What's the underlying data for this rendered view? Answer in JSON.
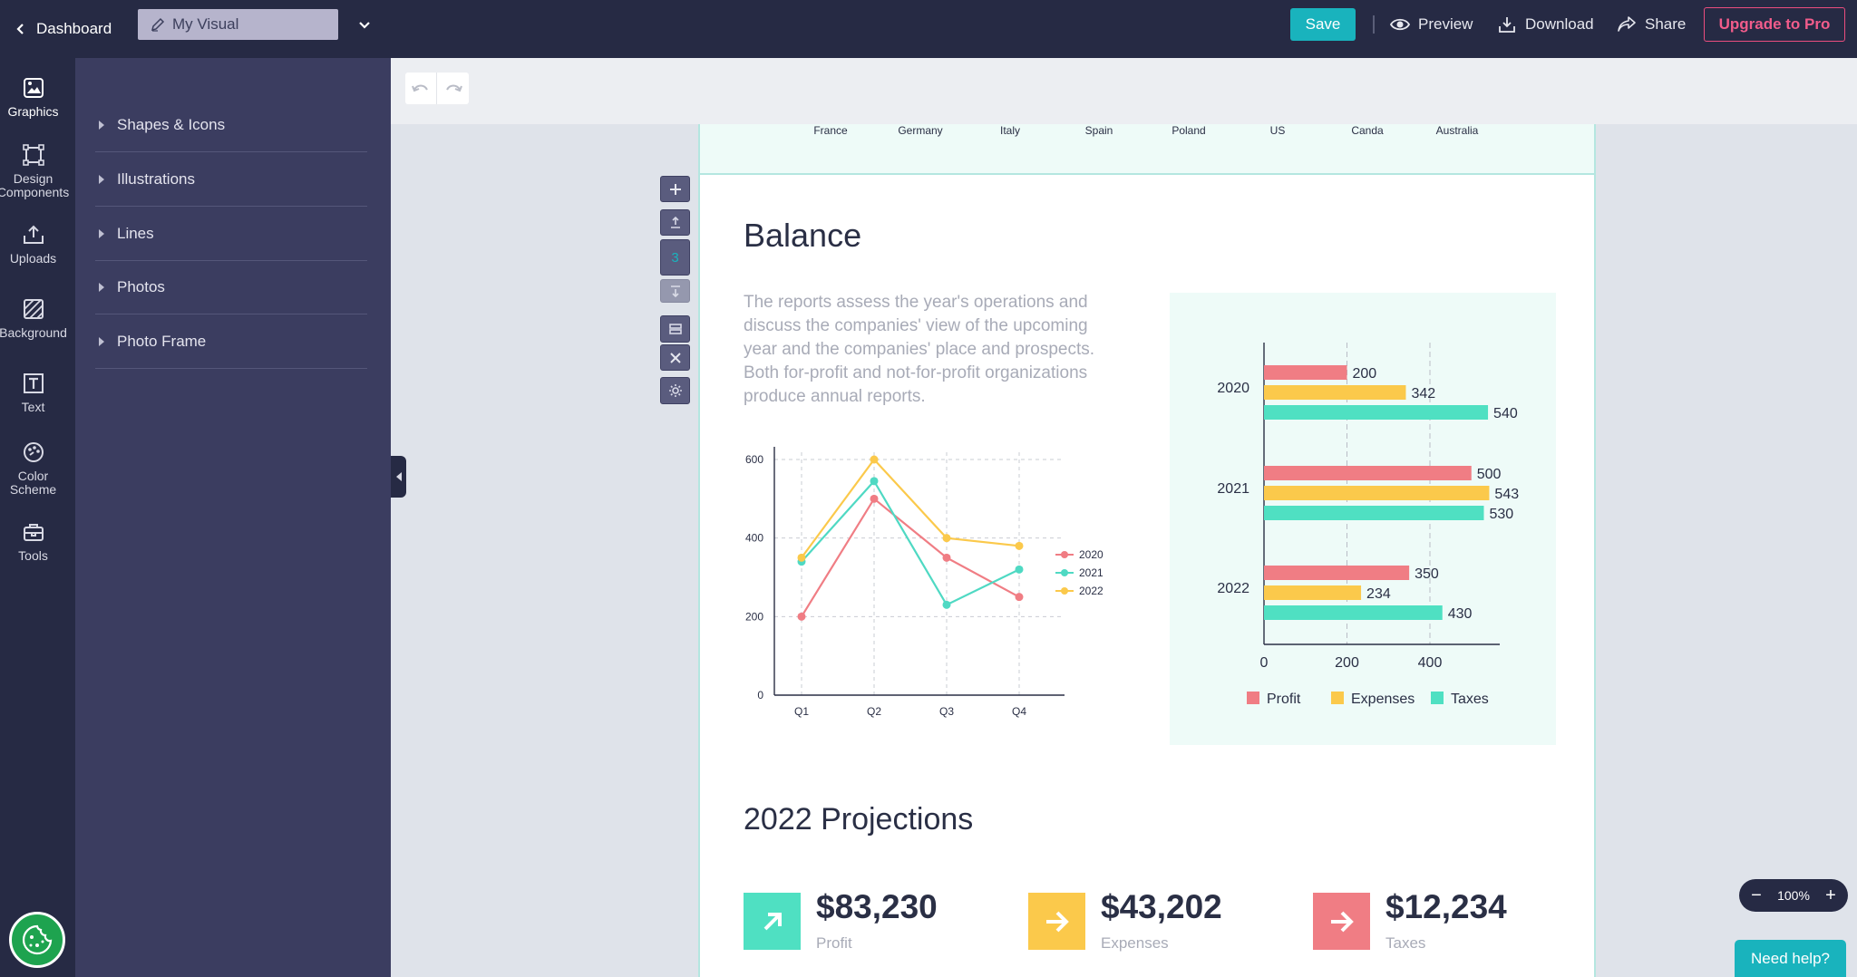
{
  "topbar": {
    "back_label": "Dashboard",
    "doc_name": "My Visual",
    "save_label": "Save",
    "preview_label": "Preview",
    "download_label": "Download",
    "share_label": "Share",
    "upgrade_label": "Upgrade to Pro"
  },
  "rail": {
    "items": [
      {
        "label": "Graphics",
        "icon": "image-icon"
      },
      {
        "label": "Design Components",
        "icon": "components-icon"
      },
      {
        "label": "Uploads",
        "icon": "upload-icon"
      },
      {
        "label": "Background",
        "icon": "background-icon"
      },
      {
        "label": "Text",
        "icon": "text-icon"
      },
      {
        "label": "Color Scheme",
        "icon": "palette-icon"
      },
      {
        "label": "Tools",
        "icon": "toolbox-icon"
      }
    ]
  },
  "panel": {
    "items": [
      "Shapes & Icons",
      "Illustrations",
      "Lines",
      "Photos",
      "Photo Frame"
    ]
  },
  "section_tools": {
    "section_number": "3"
  },
  "page": {
    "countries": [
      "France",
      "Germany",
      "Italy",
      "Spain",
      "Poland",
      "US",
      "Canda",
      "Australia"
    ],
    "balance_title": "Balance",
    "balance_desc": "The reports assess the year's operations and discuss the companies' view of the upcoming year and the companies' place and prospects. Both for-profit and not-for-profit organizations produce annual reports.",
    "projections_title": "2022 Projections",
    "kpis": [
      {
        "value": "$83,230",
        "label": "Profit",
        "color": "#4fe0c2",
        "icon": "arrow-up-right-icon"
      },
      {
        "value": "$43,202",
        "label": "Expenses",
        "color": "#fbc94b",
        "icon": "arrow-right-icon"
      },
      {
        "value": "$12,234",
        "label": "Taxes",
        "color": "#f07d84",
        "icon": "arrow-right-icon"
      }
    ]
  },
  "zoom": {
    "value": "100%"
  },
  "help_label": "Need help?",
  "chart_data": [
    {
      "type": "line",
      "categories": [
        "Q1",
        "Q2",
        "Q3",
        "Q4"
      ],
      "ylim": [
        0,
        600
      ],
      "yticks": [
        0,
        200,
        400,
        600
      ],
      "grid": true,
      "legend": "right",
      "series": [
        {
          "name": "2020",
          "color": "#f07d84",
          "values": [
            200,
            500,
            350,
            250
          ]
        },
        {
          "name": "2021",
          "color": "#4fd9c3",
          "values": [
            340,
            545,
            230,
            320
          ]
        },
        {
          "name": "2022",
          "color": "#fbc94b",
          "values": [
            350,
            600,
            400,
            380
          ]
        }
      ]
    },
    {
      "type": "bar",
      "orientation": "horizontal",
      "categories": [
        "2020",
        "2021",
        "2022"
      ],
      "xticks": [
        0,
        200,
        400
      ],
      "xlim": [
        0,
        570
      ],
      "legend": "bottom",
      "series": [
        {
          "name": "Profit",
          "color": "#f07d84",
          "values": [
            200,
            500,
            350
          ]
        },
        {
          "name": "Expenses",
          "color": "#fbc94b",
          "values": [
            342,
            543,
            234
          ]
        },
        {
          "name": "Taxes",
          "color": "#4fe0c2",
          "values": [
            540,
            530,
            430
          ]
        }
      ]
    }
  ]
}
